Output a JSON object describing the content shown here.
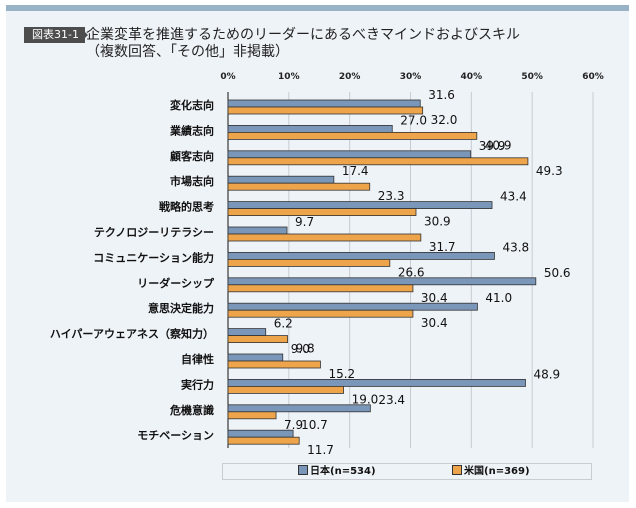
{
  "figure": {
    "badge": "図表31-1",
    "title_line1": "企業変革を推進するためのリーダーにあるべきマインドおよびスキル",
    "title_line2": "（複数回答、「その他」非掲載）"
  },
  "colors": {
    "japan": "#7a96b8",
    "usa": "#eda44a",
    "panel": "#eef3f8",
    "topbar": "#98b3c6",
    "grid": "#c8ccd2"
  },
  "chart_data": {
    "type": "bar",
    "orientation": "horizontal",
    "title": "企業変革を推進するためのリーダーにあるべきマインドおよびスキル（複数回答、「その他」非掲載）",
    "xlabel": "",
    "ylabel": "",
    "xlim": [
      0,
      60
    ],
    "x_ticks": [
      "0%",
      "10%",
      "20%",
      "30%",
      "40%",
      "50%",
      "60%"
    ],
    "grid": true,
    "legend_position": "bottom",
    "categories": [
      "変化志向",
      "業績志向",
      "顧客志向",
      "市場志向",
      "戦略的思考",
      "テクノロジーリテラシー",
      "コミュニケーション能力",
      "リーダーシップ",
      "意思決定能力",
      "ハイパーアウェアネス（察知力）",
      "自律性",
      "実行力",
      "危機意識",
      "モチベーション"
    ],
    "series": [
      {
        "name": "日本(n=534)",
        "values": [
          31.6,
          27.0,
          39.9,
          17.4,
          43.4,
          9.7,
          43.8,
          50.6,
          41.0,
          6.2,
          9.0,
          48.9,
          23.4,
          10.7
        ],
        "labels": [
          "31.6",
          "27.0",
          "39.9",
          "17.4",
          "43.4",
          "9.7",
          "43.8",
          "50.6",
          "41.0",
          "6.2",
          "9.0",
          "48.9",
          "23.4",
          "10.7"
        ]
      },
      {
        "name": "米国(n=369)",
        "values": [
          32.0,
          40.9,
          49.3,
          23.3,
          30.9,
          31.7,
          26.6,
          30.4,
          30.4,
          9.8,
          15.2,
          19.0,
          7.9,
          11.7
        ],
        "labels": [
          "32.0",
          "40.9",
          "49.3",
          "23.3",
          "30.9",
          "31.7",
          "26.6",
          "30.4",
          "30.4",
          "9.8",
          "15.2",
          "19.0",
          "7.9",
          "11.7"
        ]
      }
    ]
  },
  "legend": {
    "japan": "日本(n=534)",
    "usa": "米国(n=369)"
  }
}
